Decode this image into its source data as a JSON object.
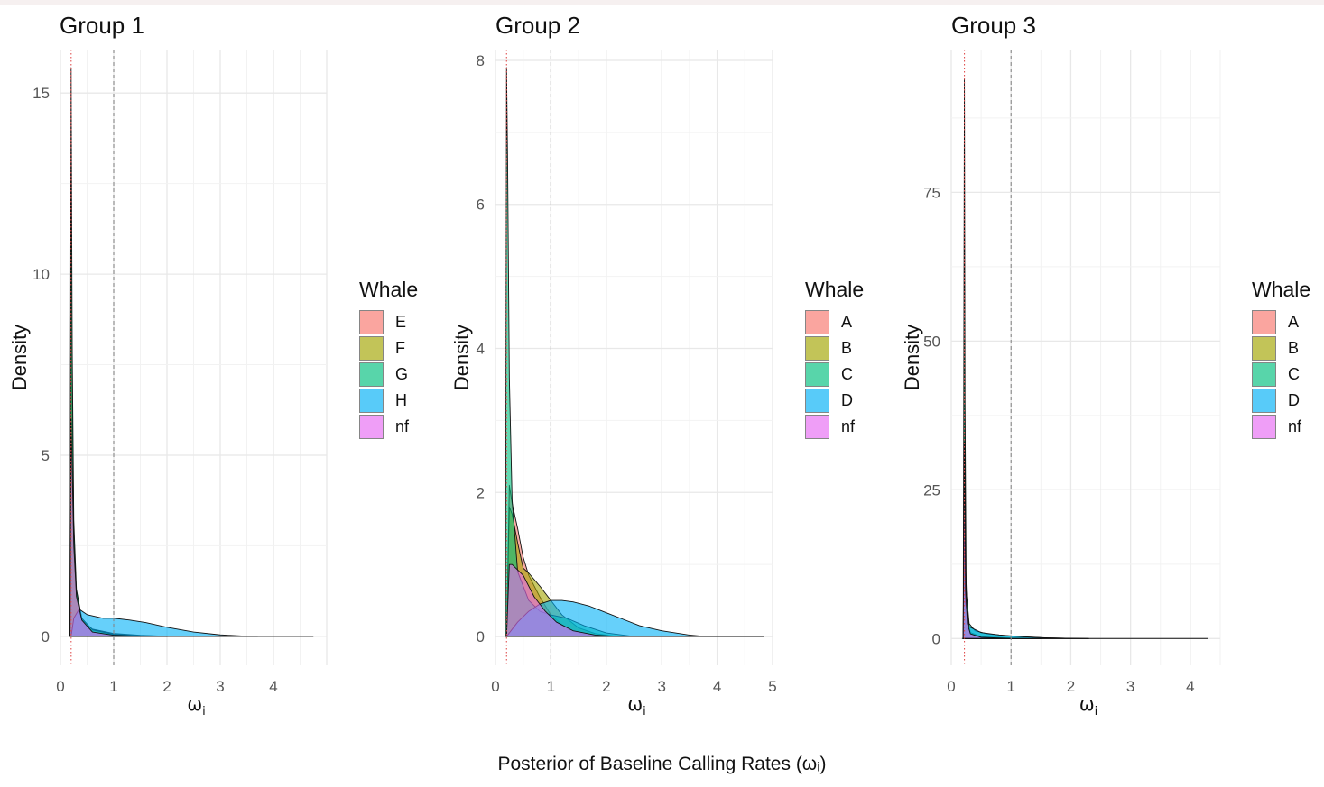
{
  "shared_xlabel": "Posterior of Baseline Calling Rates (ωᵢ)",
  "chart_data": [
    {
      "type": "area",
      "title": "Group 1",
      "xlabel": "ω",
      "xlabel_sub": "i",
      "ylabel": "Density",
      "xlim": [
        0,
        5
      ],
      "ylim": [
        -0.8,
        16.2
      ],
      "xticks": [
        0,
        1,
        2,
        3,
        4
      ],
      "yticks": [
        0,
        5,
        10,
        15
      ],
      "reference_lines": [
        {
          "x": 0.2,
          "style": "dotted",
          "color": "#e05050"
        },
        {
          "x": 1,
          "style": "dashed",
          "color": "#888888"
        }
      ],
      "legend": {
        "title": "Whale",
        "position": "right"
      },
      "grid": true,
      "series": [
        {
          "name": "E",
          "color": "#F8766D",
          "points": [
            [
              0.18,
              0
            ],
            [
              0.2,
              11.2
            ],
            [
              0.22,
              6
            ],
            [
              0.25,
              2.6
            ],
            [
              0.3,
              1.1
            ],
            [
              0.4,
              0.45
            ],
            [
              0.6,
              0.2
            ],
            [
              1,
              0.08
            ],
            [
              1.5,
              0.03
            ],
            [
              2,
              0
            ]
          ]
        },
        {
          "name": "F",
          "color": "#A3A500",
          "points": [
            [
              0.18,
              0
            ],
            [
              0.2,
              12.8
            ],
            [
              0.22,
              6.5
            ],
            [
              0.25,
              2.8
            ],
            [
              0.3,
              1.2
            ],
            [
              0.4,
              0.5
            ],
            [
              0.6,
              0.18
            ],
            [
              1,
              0.06
            ],
            [
              1.5,
              0.02
            ],
            [
              2,
              0
            ]
          ]
        },
        {
          "name": "G",
          "color": "#00BF7D",
          "points": [
            [
              0.18,
              0
            ],
            [
              0.2,
              15.7
            ],
            [
              0.22,
              8
            ],
            [
              0.25,
              3.2
            ],
            [
              0.3,
              1.3
            ],
            [
              0.4,
              0.5
            ],
            [
              0.6,
              0.18
            ],
            [
              1,
              0.05
            ],
            [
              1.5,
              0.01
            ],
            [
              2,
              0
            ]
          ]
        },
        {
          "name": "H",
          "color": "#00B0F6",
          "points": [
            [
              0.2,
              0
            ],
            [
              0.25,
              0.5
            ],
            [
              0.35,
              0.75
            ],
            [
              0.5,
              0.6
            ],
            [
              0.8,
              0.5
            ],
            [
              1,
              0.5
            ],
            [
              1.3,
              0.45
            ],
            [
              1.6,
              0.38
            ],
            [
              2,
              0.25
            ],
            [
              2.5,
              0.12
            ],
            [
              3,
              0.04
            ],
            [
              3.4,
              0.01
            ],
            [
              3.7,
              0
            ]
          ]
        },
        {
          "name": "nf",
          "color": "#E76BF3",
          "points": [
            [
              0.18,
              0
            ],
            [
              0.2,
              6
            ],
            [
              0.25,
              2.5
            ],
            [
              0.3,
              1.1
            ],
            [
              0.4,
              0.45
            ],
            [
              0.6,
              0.12
            ],
            [
              1,
              0.03
            ],
            [
              1.5,
              0
            ]
          ]
        }
      ],
      "series_outline_max_x": 4.75
    },
    {
      "type": "area",
      "title": "Group 2",
      "xlabel": "ω",
      "xlabel_sub": "i",
      "ylabel": "Density",
      "xlim": [
        0,
        5
      ],
      "ylim": [
        -0.4,
        8.15
      ],
      "xticks": [
        0,
        1,
        2,
        3,
        4,
        5
      ],
      "yticks": [
        0,
        2,
        4,
        6,
        8
      ],
      "reference_lines": [
        {
          "x": 0.2,
          "style": "dotted",
          "color": "#e05050"
        },
        {
          "x": 1,
          "style": "dashed",
          "color": "#888888"
        }
      ],
      "legend": {
        "title": "Whale",
        "position": "right"
      },
      "grid": true,
      "series": [
        {
          "name": "A",
          "color": "#F8766D",
          "points": [
            [
              0.2,
              0
            ],
            [
              0.25,
              2.1
            ],
            [
              0.3,
              1.85
            ],
            [
              0.4,
              1.5
            ],
            [
              0.5,
              1.1
            ],
            [
              0.6,
              0.85
            ],
            [
              0.8,
              0.55
            ],
            [
              1,
              0.3
            ],
            [
              1.3,
              0.1
            ],
            [
              1.6,
              0.03
            ],
            [
              2,
              0
            ]
          ]
        },
        {
          "name": "B",
          "color": "#A3A500",
          "points": [
            [
              0.2,
              0
            ],
            [
              0.25,
              1.8
            ],
            [
              0.3,
              1.7
            ],
            [
              0.4,
              1.3
            ],
            [
              0.5,
              0.95
            ],
            [
              0.6,
              0.88
            ],
            [
              0.8,
              0.7
            ],
            [
              1,
              0.5
            ],
            [
              1.2,
              0.3
            ],
            [
              1.5,
              0.12
            ],
            [
              1.8,
              0.04
            ],
            [
              2.2,
              0
            ]
          ]
        },
        {
          "name": "C",
          "color": "#00BF7D",
          "points": [
            [
              0.18,
              0
            ],
            [
              0.2,
              7.9
            ],
            [
              0.22,
              6.5
            ],
            [
              0.25,
              3.6
            ],
            [
              0.3,
              1.9
            ],
            [
              0.4,
              0.9
            ],
            [
              0.6,
              0.5
            ],
            [
              0.8,
              0.35
            ],
            [
              1,
              0.3
            ],
            [
              1.3,
              0.25
            ],
            [
              1.6,
              0.15
            ],
            [
              2,
              0.05
            ],
            [
              2.5,
              0
            ]
          ]
        },
        {
          "name": "D",
          "color": "#00B0F6",
          "points": [
            [
              0.2,
              0
            ],
            [
              0.4,
              0.2
            ],
            [
              0.6,
              0.35
            ],
            [
              0.8,
              0.45
            ],
            [
              1,
              0.5
            ],
            [
              1.2,
              0.5
            ],
            [
              1.4,
              0.48
            ],
            [
              1.7,
              0.42
            ],
            [
              2,
              0.33
            ],
            [
              2.3,
              0.24
            ],
            [
              2.6,
              0.15
            ],
            [
              3,
              0.08
            ],
            [
              3.5,
              0.02
            ],
            [
              3.8,
              0
            ]
          ]
        },
        {
          "name": "nf",
          "color": "#E76BF3",
          "points": [
            [
              0.2,
              0
            ],
            [
              0.25,
              1.0
            ],
            [
              0.3,
              1.0
            ],
            [
              0.5,
              0.85
            ],
            [
              0.7,
              0.55
            ],
            [
              0.9,
              0.35
            ],
            [
              1.1,
              0.2
            ],
            [
              1.4,
              0.08
            ],
            [
              1.8,
              0.02
            ],
            [
              2.2,
              0
            ]
          ]
        }
      ],
      "series_outline_max_x": 4.85
    },
    {
      "type": "area",
      "title": "Group 3",
      "xlabel": "ω",
      "xlabel_sub": "i",
      "ylabel": "Density",
      "xlim": [
        0,
        4.5
      ],
      "ylim": [
        -4.5,
        99
      ],
      "xticks": [
        0,
        1,
        2,
        3,
        4
      ],
      "yticks": [
        0,
        25,
        50,
        75
      ],
      "reference_lines": [
        {
          "x": 0.22,
          "style": "dotted",
          "color": "#e05050"
        },
        {
          "x": 1,
          "style": "dashed",
          "color": "#888888"
        }
      ],
      "legend": {
        "title": "Whale",
        "position": "right"
      },
      "grid": true,
      "series": [
        {
          "name": "A",
          "color": "#F8766D",
          "points": [
            [
              0.2,
              0
            ],
            [
              0.22,
              40
            ],
            [
              0.24,
              10
            ],
            [
              0.27,
              3
            ],
            [
              0.32,
              1
            ],
            [
              0.5,
              0.3
            ],
            [
              1,
              0.05
            ],
            [
              1.5,
              0
            ]
          ]
        },
        {
          "name": "B",
          "color": "#A3A500",
          "points": [
            [
              0.2,
              0
            ],
            [
              0.22,
              50
            ],
            [
              0.24,
              12
            ],
            [
              0.27,
              3.5
            ],
            [
              0.32,
              1
            ],
            [
              0.5,
              0.3
            ],
            [
              1,
              0.05
            ],
            [
              1.5,
              0
            ]
          ]
        },
        {
          "name": "C",
          "color": "#00BF7D",
          "points": [
            [
              0.2,
              0
            ],
            [
              0.22,
              94
            ],
            [
              0.23,
              40
            ],
            [
              0.25,
              8
            ],
            [
              0.3,
              2.5
            ],
            [
              0.4,
              1.3
            ],
            [
              0.6,
              0.8
            ],
            [
              1,
              0.4
            ],
            [
              1.5,
              0.15
            ],
            [
              2,
              0.03
            ],
            [
              2.3,
              0
            ]
          ]
        },
        {
          "name": "D",
          "color": "#00B0F6",
          "points": [
            [
              0.2,
              0
            ],
            [
              0.22,
              20
            ],
            [
              0.24,
              6
            ],
            [
              0.3,
              2
            ],
            [
              0.5,
              1
            ],
            [
              0.8,
              0.6
            ],
            [
              1.2,
              0.3
            ],
            [
              1.6,
              0.12
            ],
            [
              2,
              0.04
            ],
            [
              2.3,
              0
            ]
          ]
        },
        {
          "name": "nf",
          "color": "#E76BF3",
          "points": [
            [
              0.2,
              0
            ],
            [
              0.22,
              33
            ],
            [
              0.24,
              8
            ],
            [
              0.27,
              2.5
            ],
            [
              0.32,
              0.8
            ],
            [
              0.5,
              0.2
            ],
            [
              1,
              0.02
            ],
            [
              1.3,
              0
            ]
          ]
        }
      ],
      "series_outline_max_x": 4.3
    }
  ]
}
